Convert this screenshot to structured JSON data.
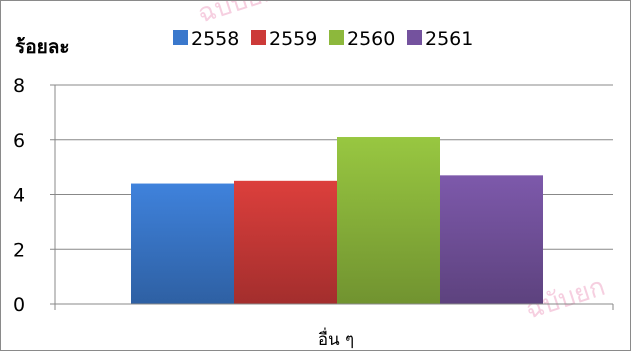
{
  "chart_data": {
    "type": "bar",
    "categories": [
      "อื่น ๆ"
    ],
    "series": [
      {
        "name": "2558",
        "values": [
          4.4
        ],
        "color": "#3a78cc"
      },
      {
        "name": "2559",
        "values": [
          4.5
        ],
        "color": "#cc3a38"
      },
      {
        "name": "2560",
        "values": [
          6.1
        ],
        "color": "#8db83c"
      },
      {
        "name": "2561",
        "values": [
          4.7
        ],
        "color": "#74529e"
      }
    ],
    "ylabel": "ร้อยละ",
    "ylim": [
      0,
      8
    ],
    "yticks": [
      0,
      2,
      4,
      6,
      8
    ],
    "grid": true,
    "legend_position": "top"
  },
  "watermark": "ฉบับยก"
}
